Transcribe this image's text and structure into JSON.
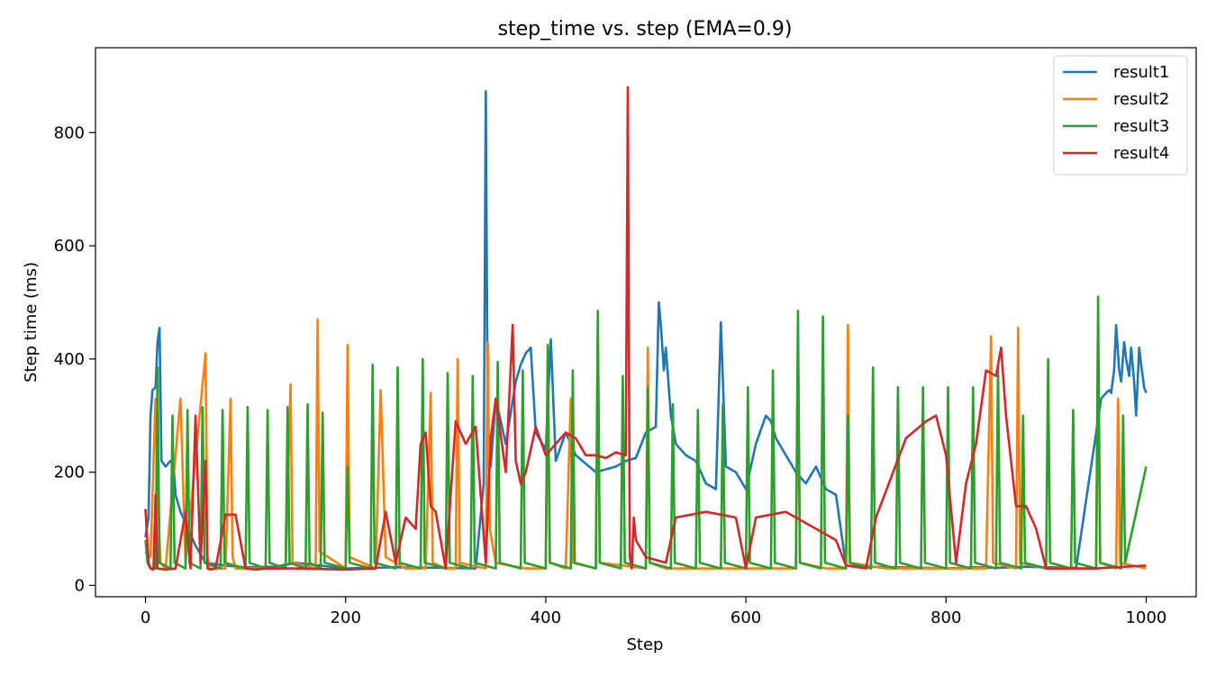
{
  "chart_data": {
    "type": "line",
    "title": "step_time vs. step (EMA=0.9)",
    "xlabel": "Step",
    "ylabel": "Step time (ms)",
    "xlim": [
      -50,
      1050
    ],
    "ylim": [
      -20,
      950
    ],
    "xticks": [
      0,
      200,
      400,
      600,
      800,
      1000
    ],
    "yticks": [
      0,
      200,
      400,
      600,
      800
    ],
    "legend_position": "top-right",
    "series": [
      {
        "name": "result1",
        "color": "#1f77b4",
        "x": [
          0,
          3,
          5,
          7,
          10,
          12,
          14,
          16,
          20,
          25,
          28,
          30,
          35,
          40,
          50,
          60,
          80,
          100,
          130,
          150,
          200,
          250,
          300,
          330,
          338,
          340,
          342,
          345,
          350,
          360,
          370,
          375,
          380,
          385,
          390,
          400,
          405,
          410,
          420,
          430,
          450,
          470,
          480,
          490,
          500,
          510,
          513,
          515,
          518,
          520,
          525,
          530,
          540,
          550,
          560,
          570,
          575,
          580,
          590,
          600,
          610,
          620,
          625,
          630,
          640,
          650,
          660,
          670,
          680,
          690,
          700,
          720,
          750,
          780,
          800,
          830,
          850,
          880,
          900,
          930,
          955,
          960,
          963,
          965,
          968,
          970,
          973,
          975,
          978,
          980,
          983,
          985,
          988,
          990,
          993,
          995,
          998,
          1000
        ],
        "values": [
          85,
          120,
          300,
          345,
          350,
          430,
          455,
          220,
          210,
          220,
          215,
          160,
          130,
          110,
          70,
          40,
          35,
          32,
          33,
          40,
          30,
          32,
          31,
          30,
          180,
          873,
          290,
          210,
          330,
          250,
          360,
          390,
          410,
          420,
          270,
          240,
          435,
          220,
          270,
          230,
          200,
          210,
          220,
          225,
          270,
          280,
          500,
          460,
          380,
          420,
          300,
          250,
          230,
          220,
          180,
          170,
          465,
          210,
          200,
          170,
          250,
          300,
          290,
          260,
          230,
          200,
          180,
          210,
          170,
          160,
          35,
          33,
          32,
          31,
          30,
          32,
          31,
          33,
          32,
          31,
          330,
          340,
          345,
          340,
          380,
          460,
          380,
          360,
          430,
          400,
          370,
          420,
          360,
          300,
          420,
          390,
          350,
          340
        ]
      },
      {
        "name": "result2",
        "color": "#ff7f0e",
        "x": [
          0,
          5,
          10,
          12,
          15,
          20,
          35,
          40,
          60,
          62,
          64,
          80,
          85,
          87,
          90,
          120,
          140,
          145,
          147,
          170,
          172,
          174,
          200,
          202,
          204,
          230,
          235,
          240,
          260,
          280,
          285,
          287,
          300,
          310,
          312,
          314,
          340,
          342,
          344,
          350,
          380,
          400,
          402,
          404,
          420,
          425,
          427,
          450,
          452,
          454,
          500,
          502,
          504,
          520,
          600,
          620,
          640,
          650,
          652,
          654,
          680,
          700,
          702,
          704,
          740,
          800,
          820,
          840,
          845,
          847,
          870,
          872,
          874,
          900,
          950,
          952,
          954,
          970,
          972,
          974,
          1000
        ],
        "values": [
          60,
          50,
          330,
          160,
          40,
          30,
          330,
          40,
          410,
          50,
          30,
          30,
          330,
          50,
          30,
          30,
          30,
          355,
          40,
          30,
          470,
          60,
          30,
          425,
          50,
          30,
          345,
          50,
          30,
          30,
          340,
          40,
          30,
          30,
          400,
          40,
          30,
          430,
          100,
          40,
          30,
          30,
          390,
          40,
          30,
          330,
          40,
          30,
          430,
          40,
          30,
          420,
          40,
          30,
          30,
          30,
          30,
          30,
          430,
          40,
          30,
          30,
          460,
          40,
          30,
          30,
          30,
          30,
          440,
          40,
          30,
          455,
          40,
          30,
          30,
          410,
          40,
          30,
          330,
          40,
          30
        ]
      },
      {
        "name": "result3",
        "color": "#2ca02c",
        "x": [
          0,
          2,
          5,
          10,
          12,
          14,
          25,
          27,
          29,
          40,
          42,
          44,
          55,
          57,
          59,
          75,
          77,
          79,
          100,
          102,
          104,
          120,
          122,
          124,
          140,
          142,
          144,
          160,
          162,
          164,
          175,
          177,
          179,
          200,
          202,
          204,
          225,
          227,
          229,
          250,
          252,
          254,
          275,
          277,
          279,
          300,
          302,
          304,
          325,
          327,
          329,
          350,
          352,
          354,
          375,
          377,
          379,
          400,
          402,
          404,
          425,
          427,
          429,
          450,
          452,
          454,
          475,
          477,
          479,
          500,
          502,
          504,
          525,
          527,
          529,
          550,
          552,
          554,
          575,
          577,
          579,
          600,
          602,
          604,
          625,
          627,
          629,
          650,
          652,
          654,
          675,
          677,
          679,
          700,
          702,
          704,
          725,
          727,
          729,
          750,
          752,
          754,
          775,
          777,
          779,
          800,
          802,
          804,
          825,
          827,
          829,
          850,
          852,
          854,
          875,
          877,
          879,
          900,
          902,
          904,
          925,
          927,
          929,
          950,
          952,
          954,
          975,
          977,
          979,
          1000
        ],
        "values": [
          80,
          40,
          30,
          30,
          385,
          40,
          30,
          300,
          40,
          30,
          310,
          40,
          30,
          315,
          40,
          30,
          310,
          40,
          30,
          315,
          40,
          30,
          310,
          40,
          30,
          315,
          40,
          30,
          320,
          40,
          30,
          305,
          40,
          30,
          210,
          40,
          30,
          390,
          40,
          30,
          385,
          40,
          30,
          400,
          40,
          30,
          375,
          40,
          30,
          370,
          40,
          30,
          395,
          40,
          30,
          380,
          40,
          30,
          425,
          40,
          30,
          380,
          40,
          30,
          485,
          40,
          30,
          370,
          40,
          30,
          350,
          40,
          30,
          320,
          40,
          30,
          310,
          40,
          30,
          320,
          40,
          30,
          350,
          40,
          30,
          380,
          40,
          30,
          485,
          40,
          30,
          475,
          40,
          30,
          300,
          40,
          30,
          385,
          40,
          30,
          350,
          40,
          30,
          350,
          40,
          30,
          350,
          40,
          30,
          350,
          40,
          30,
          390,
          40,
          30,
          300,
          40,
          30,
          400,
          40,
          30,
          310,
          40,
          30,
          510,
          40,
          30,
          300,
          40,
          210
        ]
      },
      {
        "name": "result4",
        "color": "#d62728",
        "x": [
          0,
          3,
          5,
          8,
          10,
          12,
          20,
          30,
          40,
          45,
          50,
          55,
          60,
          62,
          65,
          70,
          80,
          85,
          90,
          100,
          110,
          120,
          150,
          200,
          230,
          240,
          250,
          260,
          270,
          275,
          280,
          285,
          290,
          300,
          310,
          320,
          330,
          340,
          345,
          350,
          360,
          367,
          370,
          375,
          380,
          390,
          400,
          420,
          430,
          440,
          450,
          460,
          470,
          480,
          482,
          484,
          486,
          488,
          490,
          500,
          520,
          530,
          560,
          590,
          600,
          610,
          640,
          650,
          670,
          690,
          700,
          720,
          730,
          760,
          780,
          790,
          800,
          810,
          820,
          830,
          840,
          850,
          855,
          860,
          870,
          880,
          890,
          900,
          950,
          1000
        ],
        "values": [
          135,
          40,
          30,
          28,
          160,
          30,
          28,
          30,
          130,
          30,
          300,
          40,
          220,
          30,
          28,
          30,
          125,
          125,
          125,
          30,
          28,
          30,
          30,
          28,
          30,
          130,
          40,
          120,
          100,
          250,
          270,
          140,
          130,
          30,
          290,
          250,
          280,
          40,
          260,
          330,
          200,
          460,
          220,
          180,
          200,
          280,
          230,
          270,
          260,
          230,
          230,
          225,
          235,
          230,
          880,
          50,
          30,
          120,
          80,
          50,
          40,
          120,
          130,
          120,
          30,
          120,
          130,
          120,
          100,
          80,
          35,
          30,
          120,
          260,
          290,
          300,
          230,
          40,
          180,
          250,
          380,
          370,
          420,
          300,
          140,
          140,
          100,
          30,
          30,
          35
        ]
      }
    ]
  }
}
